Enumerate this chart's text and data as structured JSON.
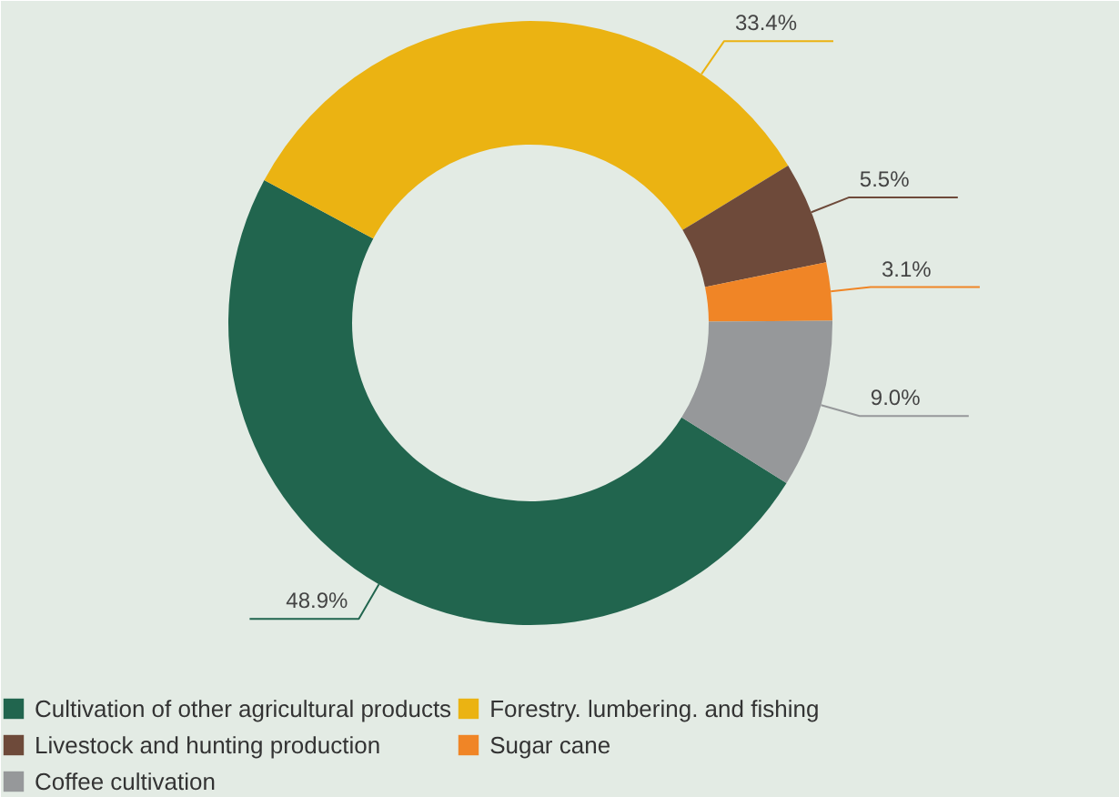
{
  "chart_data": {
    "type": "donut",
    "categories": [
      "Cultivation of other agricultural products",
      "Forestry. lumbering. and fishing",
      "Livestock and hunting production",
      "Sugar cane",
      "Coffee cultivation"
    ],
    "values": [
      48.9,
      33.4,
      5.5,
      3.1,
      9.0
    ],
    "value_labels": [
      "48.9%",
      "33.4%",
      "5.5%",
      "3.1%",
      "9.0%"
    ],
    "colors": [
      "#21654e",
      "#ebb312",
      "#6e4a3a",
      "#f08526",
      "#96989a"
    ],
    "legend": "bottom"
  }
}
